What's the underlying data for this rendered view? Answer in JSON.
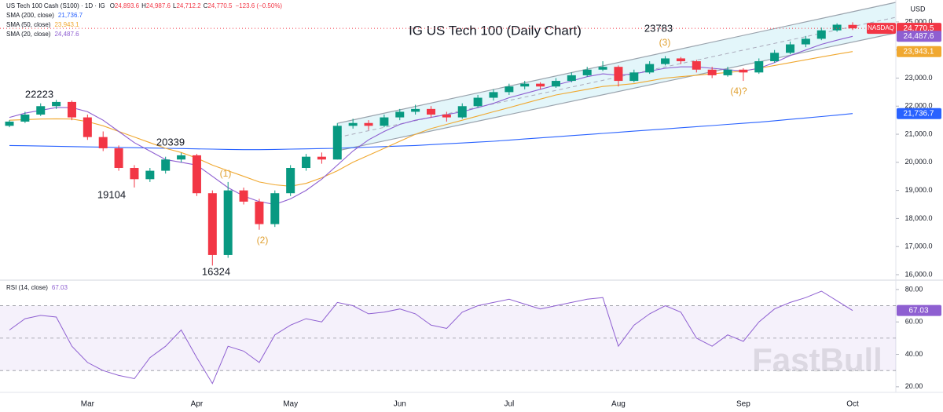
{
  "chart_data": [
    {
      "type": "candlestick",
      "title": "IG US Tech 100 (Daily Chart)",
      "header": {
        "symbol": "US Tech 100 Cash (S100) · 1D · IG",
        "ohlc": [
          {
            "key": "O",
            "value": "24,893.6"
          },
          {
            "key": "H",
            "value": "24,987.6"
          },
          {
            "key": "L",
            "value": "24,712.2"
          },
          {
            "key": "C",
            "value": "24,770.5"
          }
        ],
        "change": "−123.6 (−0.50%)"
      },
      "currency": "USD",
      "exchange": "NASDAQ",
      "last_label": "24,770.5",
      "up_color": "#089981",
      "down_color": "#f23645",
      "categories": [
        null,
        null,
        null,
        null,
        null,
        "Mar",
        null,
        null,
        null,
        null,
        null,
        null,
        "Apr",
        null,
        null,
        null,
        null,
        null,
        "May",
        null,
        null,
        null,
        null,
        null,
        null,
        "Jun",
        null,
        null,
        null,
        null,
        null,
        null,
        "Jul",
        null,
        null,
        null,
        null,
        null,
        null,
        "Aug",
        null,
        null,
        null,
        null,
        null,
        null,
        null,
        "Sep",
        null,
        null,
        null,
        null,
        null,
        null,
        "Oct"
      ],
      "open": [
        21300,
        21450,
        21700,
        22000,
        22150,
        21600,
        20900,
        20500,
        19800,
        19400,
        19700,
        20100,
        20250,
        18900,
        16700,
        19000,
        18600,
        17800,
        18900,
        19800,
        20200,
        20100,
        21300,
        21400,
        21300,
        21600,
        21800,
        21900,
        21700,
        21600,
        22000,
        22300,
        22500,
        22700,
        22800,
        22700,
        22900,
        23100,
        23300,
        23400,
        22900,
        23200,
        23500,
        23700,
        23600,
        23300,
        23100,
        23300,
        23200,
        23600,
        23900,
        24200,
        24400,
        24700,
        24893.6
      ],
      "high": [
        21500,
        21800,
        22100,
        22223,
        22200,
        21700,
        21100,
        20600,
        19900,
        19800,
        20200,
        20339,
        20300,
        19000,
        19300,
        19100,
        18700,
        19000,
        19900,
        20300,
        20350,
        21400,
        21550,
        21500,
        21700,
        21900,
        22050,
        22000,
        21800,
        22100,
        22400,
        22600,
        22800,
        22900,
        22850,
        23000,
        23200,
        23400,
        23600,
        23450,
        23300,
        23600,
        23783,
        23750,
        23650,
        23400,
        23400,
        23350,
        23700,
        24000,
        24300,
        24500,
        24800,
        24950,
        24987.6
      ],
      "low": [
        21250,
        21400,
        21650,
        21900,
        21500,
        20800,
        20400,
        19700,
        19104,
        19300,
        19600,
        20000,
        18800,
        16324,
        16600,
        18500,
        17600,
        17700,
        18800,
        19700,
        19950,
        20100,
        21200,
        21150,
        21250,
        21500,
        21700,
        21600,
        21450,
        21550,
        21950,
        22200,
        22400,
        22600,
        22600,
        22650,
        22850,
        23050,
        23250,
        22700,
        22850,
        23150,
        23450,
        23500,
        23200,
        23000,
        23050,
        22900,
        23150,
        23550,
        23850,
        24100,
        24350,
        24650,
        24712.2
      ],
      "close": [
        21450,
        21700,
        22000,
        22150,
        21600,
        20900,
        20500,
        19800,
        19400,
        19700,
        20100,
        20250,
        18900,
        16700,
        19000,
        18600,
        17800,
        18900,
        19800,
        20200,
        20100,
        21300,
        21400,
        21300,
        21600,
        21800,
        21900,
        21700,
        21600,
        22000,
        22300,
        22500,
        22700,
        22800,
        22700,
        22900,
        23100,
        23300,
        23400,
        22900,
        23200,
        23500,
        23700,
        23600,
        23300,
        23100,
        23300,
        23200,
        23600,
        23900,
        24200,
        24400,
        24700,
        24900,
        24770.5
      ],
      "series": [
        {
          "name": "SMA (200, close)",
          "color": "#2962ff",
          "last_label": "21,736.7",
          "values": [
            20600,
            20590,
            20580,
            20570,
            20560,
            20550,
            20540,
            20530,
            20520,
            20510,
            20500,
            20490,
            20480,
            20470,
            20460,
            20450,
            20450,
            20460,
            20470,
            20480,
            20490,
            20500,
            20520,
            20540,
            20560,
            20580,
            20600,
            20630,
            20660,
            20690,
            20720,
            20750,
            20790,
            20830,
            20870,
            20910,
            20950,
            20990,
            21030,
            21070,
            21110,
            21150,
            21190,
            21230,
            21270,
            21310,
            21350,
            21390,
            21430,
            21480,
            21530,
            21580,
            21630,
            21680,
            21736.7
          ]
        },
        {
          "name": "SMA (50, close)",
          "color": "#f0a830",
          "last_label": "23,943.1",
          "values": [
            21500,
            21520,
            21540,
            21550,
            21540,
            21450,
            21300,
            21100,
            20900,
            20700,
            20500,
            20350,
            20150,
            19900,
            19700,
            19500,
            19300,
            19200,
            19150,
            19250,
            19450,
            19700,
            20000,
            20250,
            20500,
            20750,
            21000,
            21200,
            21350,
            21500,
            21650,
            21800,
            21950,
            22100,
            22250,
            22400,
            22500,
            22600,
            22700,
            22750,
            22800,
            22900,
            23000,
            23050,
            23100,
            23150,
            23200,
            23250,
            23350,
            23450,
            23550,
            23650,
            23750,
            23850,
            23943.1
          ]
        },
        {
          "name": "SMA (20, close)",
          "color": "#8e5fd1",
          "last_label": "24,487.6",
          "values": [
            21600,
            21750,
            21850,
            21950,
            21950,
            21800,
            21500,
            21100,
            20700,
            20400,
            20100,
            20000,
            19900,
            19500,
            19100,
            18800,
            18600,
            18500,
            18700,
            19000,
            19400,
            19900,
            20400,
            20800,
            21100,
            21350,
            21500,
            21600,
            21700,
            21800,
            21950,
            22100,
            22300,
            22450,
            22600,
            22750,
            22900,
            23050,
            23150,
            23100,
            23150,
            23250,
            23350,
            23400,
            23400,
            23350,
            23300,
            23250,
            23350,
            23550,
            23800,
            24000,
            24200,
            24350,
            24487.6
          ]
        }
      ],
      "annotations": [
        22223,
        19104,
        20339,
        16324,
        23783,
        "(1)",
        "(2)",
        "(3)",
        "(4)?"
      ],
      "ylim": [
        15860,
        25780
      ],
      "yticks": [
        {
          "value": 16000,
          "label": "16,000.0"
        },
        {
          "value": 17000,
          "label": "17,000.0"
        },
        {
          "value": 18000,
          "label": "18,000.0"
        },
        {
          "value": 19000,
          "label": "19,000.0"
        },
        {
          "value": 20000,
          "label": "20,000.0"
        },
        {
          "value": 21000,
          "label": "21,000.0"
        },
        {
          "value": 22000,
          "label": "22,000.0"
        },
        {
          "value": 23000,
          "label": "23,000.0"
        },
        {
          "value": 24000,
          "label": "24,000.0"
        },
        {
          "value": 25000,
          "label": "25,000.0"
        }
      ]
    },
    {
      "type": "line",
      "name": "RSI (14, close)",
      "color": "#8e5fd1",
      "last_label": "67.03",
      "values": [
        55,
        62,
        64,
        63,
        45,
        35,
        30,
        27,
        25,
        38,
        45,
        55,
        38,
        22,
        45,
        42,
        35,
        52,
        58,
        62,
        60,
        72,
        70,
        65,
        66,
        68,
        65,
        58,
        56,
        66,
        70,
        72,
        74,
        71,
        68,
        70,
        72,
        74,
        75,
        45,
        58,
        65,
        70,
        66,
        50,
        45,
        52,
        48,
        60,
        68,
        72,
        75,
        79,
        73,
        67.03
      ],
      "bands": [
        70,
        50,
        30
      ],
      "ylim": [
        18,
        84.3
      ],
      "yticks": [
        {
          "value": 20,
          "label": "20.00"
        },
        {
          "value": 40,
          "label": "40.00"
        },
        {
          "value": 60,
          "label": "60.00"
        },
        {
          "value": 80,
          "label": "80.00"
        }
      ]
    }
  ],
  "watermark": "FastBull"
}
